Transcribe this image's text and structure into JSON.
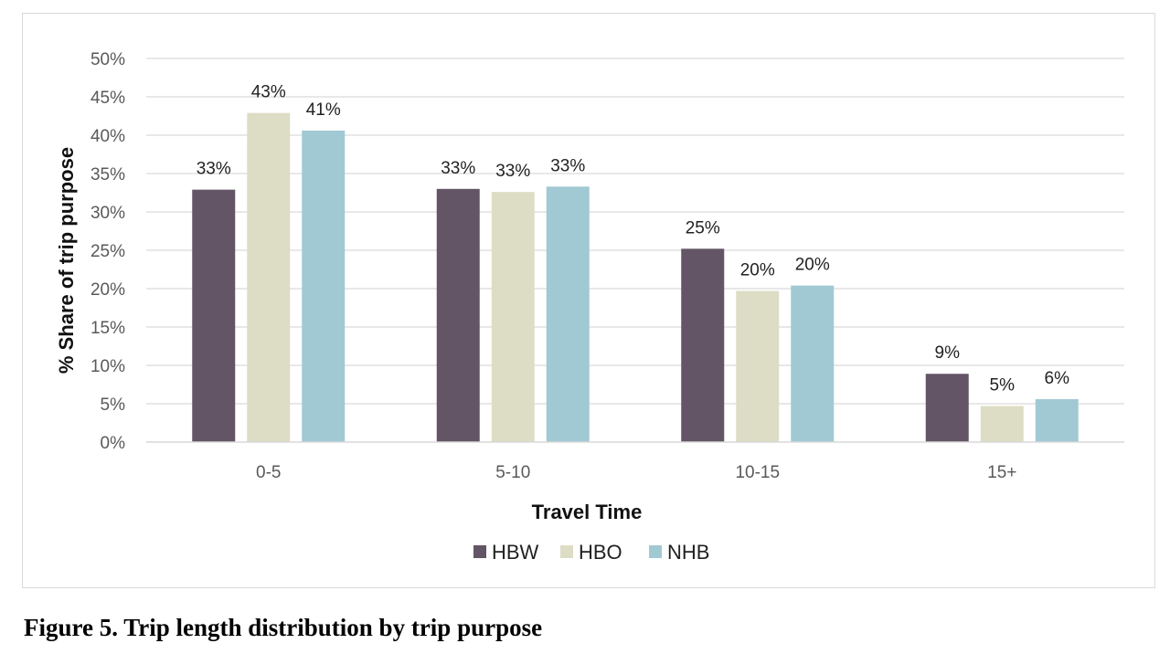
{
  "caption": "Figure 5. Trip length distribution by trip purpose",
  "chart_data": {
    "type": "bar",
    "title": "",
    "xlabel": "Travel Time",
    "ylabel": "% Share of trip purpose",
    "categories": [
      "0-5",
      "5-10",
      "10-15",
      "15+"
    ],
    "yticks": [
      "0%",
      "5%",
      "10%",
      "15%",
      "20%",
      "25%",
      "30%",
      "35%",
      "40%",
      "45%",
      "50%"
    ],
    "ylim": [
      0,
      50
    ],
    "grid": true,
    "legend_position": "bottom",
    "series": [
      {
        "name": "HBW",
        "color": "#635565",
        "values": [
          32.9,
          33.0,
          25.2,
          8.9
        ],
        "labels": [
          "33%",
          "33%",
          "25%",
          "9%"
        ]
      },
      {
        "name": "HBO",
        "color": "#ddddc5",
        "values": [
          42.9,
          32.6,
          19.7,
          4.7
        ],
        "labels": [
          "43%",
          "33%",
          "20%",
          "5%"
        ]
      },
      {
        "name": "NHB",
        "color": "#a1c9d4",
        "values": [
          40.6,
          33.3,
          20.4,
          5.6
        ],
        "labels": [
          "41%",
          "33%",
          "20%",
          "6%"
        ]
      }
    ]
  }
}
